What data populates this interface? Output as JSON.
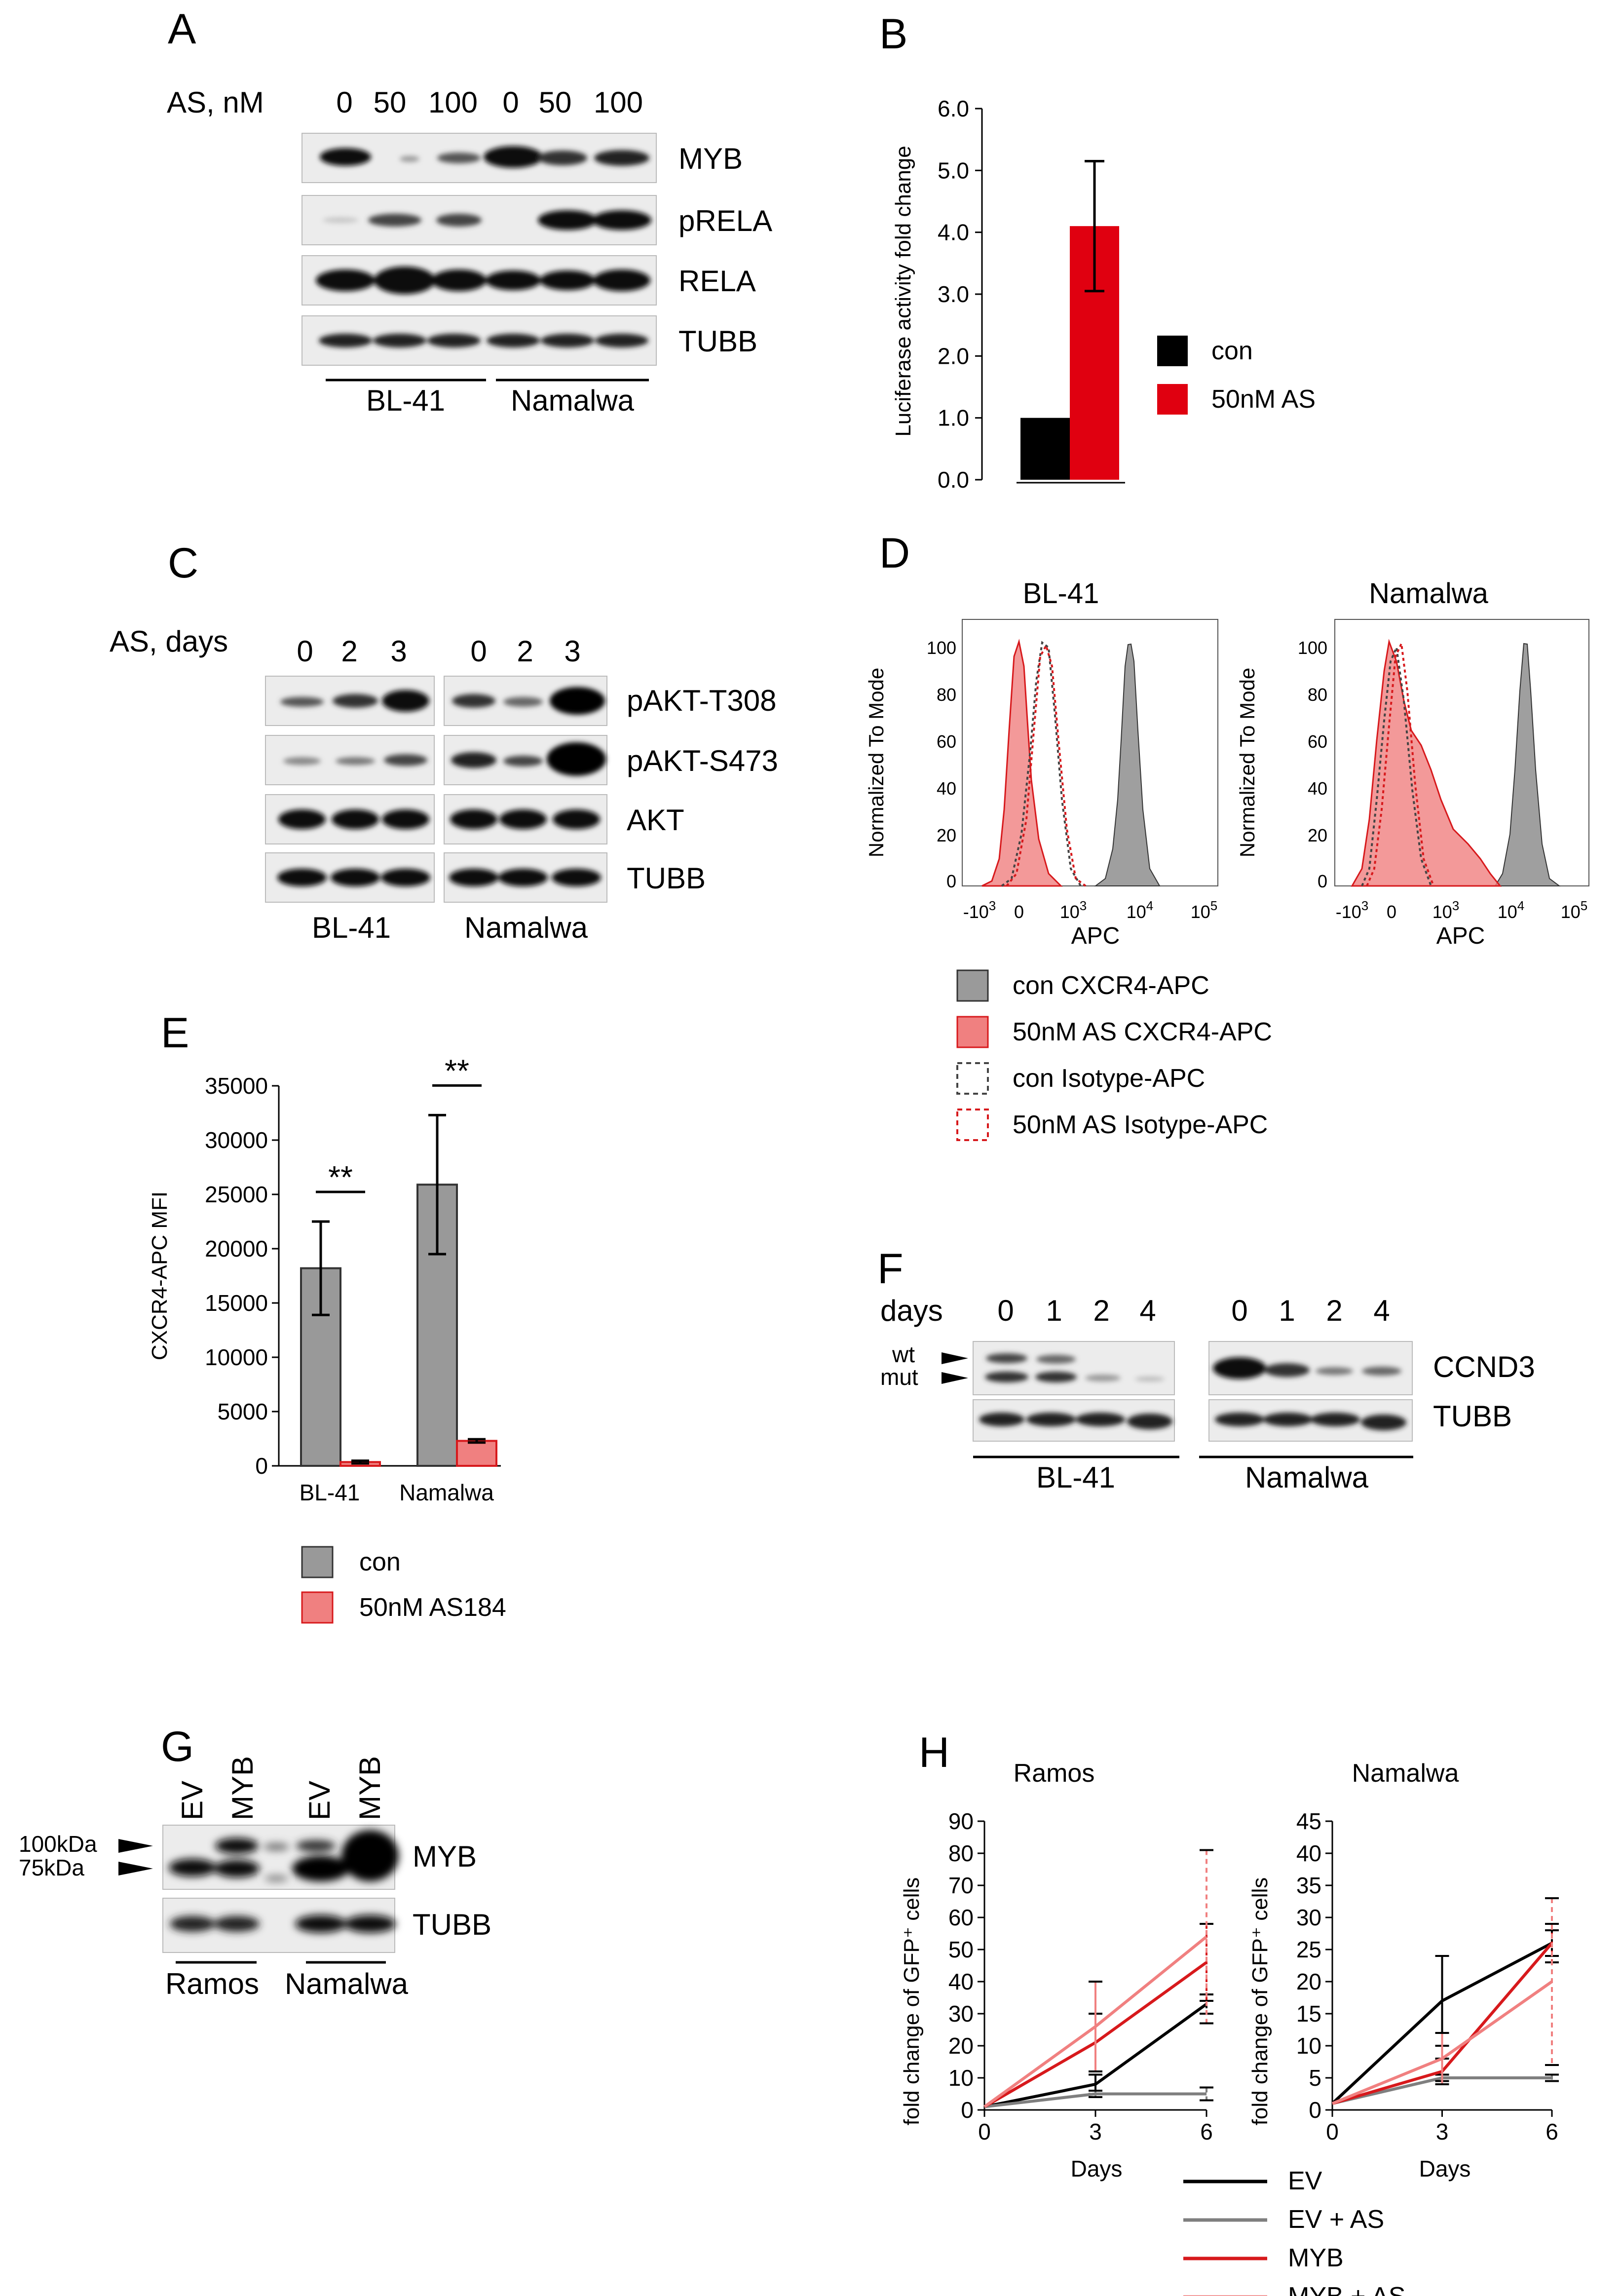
{
  "panelA": {
    "letter": "A",
    "header": "AS, nM",
    "lanes": [
      "0",
      "50",
      "100",
      "0",
      "50",
      "100"
    ],
    "bands": [
      "MYB",
      "pRELA",
      "RELA",
      "TUBB"
    ],
    "groups": [
      "BL-41",
      "Namalwa"
    ]
  },
  "panelB": {
    "letter": "B",
    "legend": [
      "con",
      "50nM AS"
    ]
  },
  "panelC": {
    "letter": "C",
    "header": "AS, days",
    "lanes": [
      "0",
      "2",
      "3",
      "0",
      "2",
      "3"
    ],
    "bands": [
      "pAKT-T308",
      "pAKT-S473",
      "AKT",
      "TUBB"
    ],
    "groups": [
      "BL-41",
      "Namalwa"
    ]
  },
  "panelD": {
    "letter": "D",
    "plots": [
      {
        "title": "BL-41",
        "ylabel": "Normalized To Mode",
        "xlabel": "APC"
      },
      {
        "title": "Namalwa",
        "ylabel": "Normalized To Mode",
        "xlabel": "APC"
      }
    ],
    "yticks": [
      "0",
      "20",
      "40",
      "60",
      "80",
      "100"
    ],
    "xticks": [
      {
        "base": "-10",
        "exp": "3"
      },
      {
        "base": "0",
        "exp": ""
      },
      {
        "base": "10",
        "exp": "3"
      },
      {
        "base": "10",
        "exp": "4"
      },
      {
        "base": "10",
        "exp": "5"
      }
    ],
    "legend": [
      "con CXCR4-APC",
      "50nM AS CXCR4-APC",
      "con Isotype-APC",
      "50nM AS Isotype-APC"
    ]
  },
  "panelE": {
    "letter": "E",
    "legend": [
      "con",
      "50nM AS184"
    ]
  },
  "panelF": {
    "letter": "F",
    "header": "days",
    "lanes": [
      "0",
      "1",
      "2",
      "4",
      "0",
      "1",
      "2",
      "4"
    ],
    "markers": [
      "wt",
      "mut"
    ],
    "bands": [
      "CCND3",
      "TUBB"
    ],
    "groups": [
      "BL-41",
      "Namalwa"
    ]
  },
  "panelG": {
    "letter": "G",
    "lanes": [
      "EV",
      "MYB",
      "EV",
      "MYB"
    ],
    "markers": [
      "100kDa",
      "75kDa"
    ],
    "bands": [
      "MYB",
      "TUBB"
    ],
    "groups": [
      "Ramos",
      "Namalwa"
    ]
  },
  "panelH": {
    "letter": "H",
    "legend": [
      "EV",
      "EV + AS",
      "MYB",
      "MYB + AS"
    ],
    "legend_colors": [
      "#000000",
      "#7f7f7f",
      "#d7191c",
      "#f08080"
    ]
  },
  "chart_data": [
    {
      "id": "B",
      "type": "bar",
      "title": "",
      "xlabel": "",
      "ylabel": "Luciferase activity fold change",
      "ylim": [
        0,
        6
      ],
      "yticks": [
        "0.0",
        "1.0",
        "2.0",
        "3.0",
        "4.0",
        "5.0",
        "6.0"
      ],
      "series": [
        {
          "name": "con",
          "color": "#000000",
          "values": [
            1.0
          ],
          "error": [
            0
          ]
        },
        {
          "name": "50nM AS",
          "color": "#e00010",
          "values": [
            4.1
          ],
          "error": [
            1.05
          ]
        }
      ]
    },
    {
      "id": "E",
      "type": "bar",
      "title": "",
      "xlabel": "",
      "ylabel": "CXCR4-APC MFI",
      "ylim": [
        0,
        35000
      ],
      "yticks": [
        "0",
        "5000",
        "10000",
        "15000",
        "20000",
        "25000",
        "30000",
        "35000"
      ],
      "categories": [
        "BL-41",
        "Namalwa"
      ],
      "annotations": [
        "**",
        "**"
      ],
      "series": [
        {
          "name": "con",
          "color": "#999999",
          "values": [
            18200,
            25900
          ],
          "error": [
            4300,
            6400
          ]
        },
        {
          "name": "50nM AS184",
          "color": "#f08080",
          "values": [
            350,
            2300
          ],
          "error": [
            120,
            150
          ]
        }
      ]
    },
    {
      "id": "H-Ramos",
      "type": "line",
      "title": "Ramos",
      "xlabel": "Days",
      "ylabel": "fold change of GFP⁺ cells",
      "ylim": [
        0,
        90
      ],
      "yticks": [
        "0",
        "10",
        "20",
        "30",
        "40",
        "50",
        "60",
        "70",
        "80",
        "90"
      ],
      "xticks": [
        "0",
        "3",
        "6"
      ],
      "x": [
        0,
        3,
        6
      ],
      "series": [
        {
          "name": "EV",
          "color": "#000000",
          "values": [
            1,
            8,
            33
          ],
          "error": [
            0,
            3,
            3
          ]
        },
        {
          "name": "EV + AS",
          "color": "#7f7f7f",
          "values": [
            1,
            5,
            5
          ],
          "error": [
            0,
            1,
            2
          ]
        },
        {
          "name": "MYB",
          "color": "#d7191c",
          "values": [
            1,
            21,
            46
          ],
          "error": [
            0,
            9,
            12
          ]
        },
        {
          "name": "MYB + AS",
          "color": "#f08080",
          "values": [
            1,
            26,
            54
          ],
          "error": [
            0,
            14,
            27
          ]
        }
      ]
    },
    {
      "id": "H-Namalwa",
      "type": "line",
      "title": "Namalwa",
      "xlabel": "Days",
      "ylabel": "fold change of GFP⁺ cells",
      "ylim": [
        0,
        45
      ],
      "yticks": [
        "0",
        "5",
        "10",
        "15",
        "20",
        "25",
        "30",
        "35",
        "40",
        "45"
      ],
      "xticks": [
        "0",
        "3",
        "6"
      ],
      "x": [
        0,
        3,
        6
      ],
      "series": [
        {
          "name": "EV",
          "color": "#000000",
          "values": [
            1,
            17,
            26
          ],
          "error": [
            0,
            7,
            2
          ]
        },
        {
          "name": "EV + AS",
          "color": "#7f7f7f",
          "values": [
            1,
            5,
            5
          ],
          "error": [
            0,
            0.5,
            0.5
          ]
        },
        {
          "name": "MYB",
          "color": "#d7191c",
          "values": [
            1,
            6,
            26
          ],
          "error": [
            0,
            2,
            3
          ]
        },
        {
          "name": "MYB + AS",
          "color": "#f08080",
          "values": [
            1,
            8,
            20
          ],
          "error": [
            0,
            4,
            13
          ]
        }
      ]
    }
  ]
}
